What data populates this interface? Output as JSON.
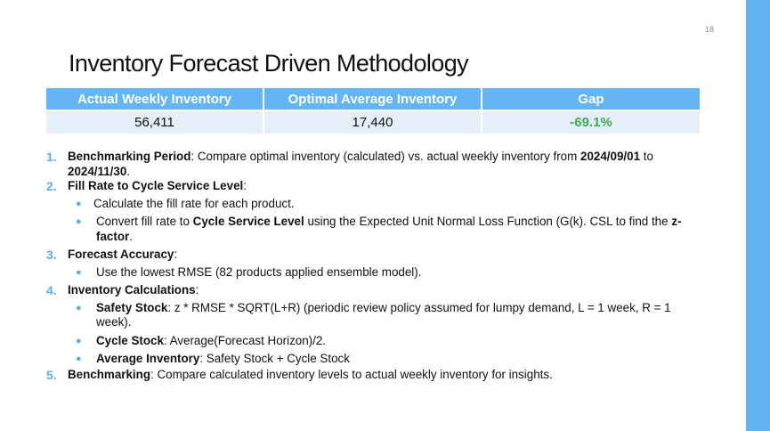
{
  "page": {
    "number": "18",
    "title": "Inventory Forecast Driven Methodology"
  },
  "colors": {
    "accent": "#63b5f6",
    "table_row": "#e6eef8",
    "gap_green": "#3fad52"
  },
  "table": {
    "headers": [
      "Actual Weekly Inventory",
      "Optimal Average Inventory",
      "Gap"
    ],
    "row": [
      "56,411",
      "17,440",
      "-69.1%"
    ]
  },
  "steps": [
    {
      "num": "1.",
      "label": "Benchmarking Period",
      "text_a": ": Compare optimal inventory (calculated) vs. actual weekly inventory from ",
      "date_start": "2024/09/01",
      "text_b": " to ",
      "date_end": "2024/11/30",
      "text_c": "."
    },
    {
      "num": "2.",
      "label": "Fill Rate to Cycle Service Level",
      "suffix": ":",
      "bullets": [
        {
          "text": "Calculate the fill rate for each product."
        },
        {
          "pre": "Convert fill rate to ",
          "bold1": "Cycle Service Level",
          "mid": " using the Expected Unit Normal Loss Function (G(k). CSL to find the ",
          "bold2": "z-factor",
          "post": "."
        }
      ]
    },
    {
      "num": "3.",
      "label": "Forecast Accuracy",
      "suffix": ":",
      "bullets": [
        {
          "text": "Use the lowest RMSE (82 products applied ensemble model)."
        }
      ]
    },
    {
      "num": "4.",
      "label": "Inventory Calculations",
      "suffix": ":",
      "bullets": [
        {
          "bold": "Safety Stock",
          "text": ": z * RMSE * SQRT(L+R) (periodic review policy assumed for lumpy demand, L = 1 week, R = 1 week)."
        },
        {
          "bold": "Cycle Stock",
          "text": ": Average(Forecast Horizon)/2."
        },
        {
          "bold": "Average Inventory",
          "text": ": Safety Stock + Cycle Stock"
        }
      ]
    },
    {
      "num": "5.",
      "label": "Benchmarking",
      "text": ": Compare calculated inventory levels to actual weekly inventory for insights."
    }
  ]
}
